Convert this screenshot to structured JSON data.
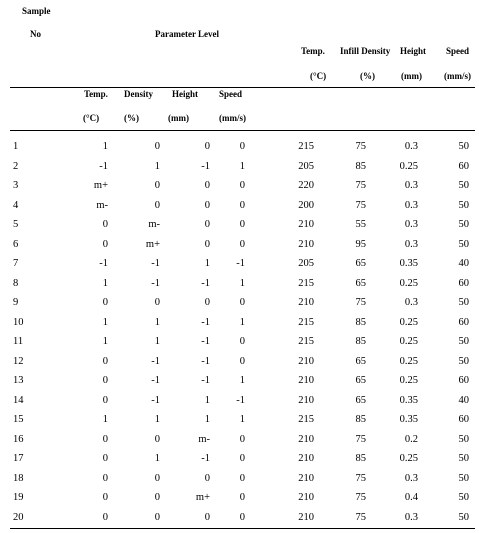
{
  "header": {
    "sample": "Sample",
    "no": "No",
    "parameter_level": "Parameter Level",
    "temp": "Temp.",
    "infill_density": "Infill Density",
    "height": "Height",
    "speed": "Speed",
    "unit_temp": "(°C)",
    "unit_pct": "(%)",
    "unit_mm": "(mm)",
    "unit_speed": "(mm/s)"
  },
  "subheader": {
    "temp": "Temp.",
    "density": "Density",
    "height": "Height",
    "speed": "Speed",
    "unit_temp": "(°C)",
    "unit_pct": "(%)",
    "unit_mm": "(mm)",
    "unit_speed": "(mm/s)"
  },
  "rows": [
    [
      "1",
      "1",
      "0",
      "0",
      "0",
      "215",
      "75",
      "0.3",
      "50"
    ],
    [
      "2",
      "-1",
      "1",
      "-1",
      "1",
      "205",
      "85",
      "0.25",
      "60"
    ],
    [
      "3",
      "m+",
      "0",
      "0",
      "0",
      "220",
      "75",
      "0.3",
      "50"
    ],
    [
      "4",
      "m-",
      "0",
      "0",
      "0",
      "200",
      "75",
      "0.3",
      "50"
    ],
    [
      "5",
      "0",
      "m-",
      "0",
      "0",
      "210",
      "55",
      "0.3",
      "50"
    ],
    [
      "6",
      "0",
      "m+",
      "0",
      "0",
      "210",
      "95",
      "0.3",
      "50"
    ],
    [
      "7",
      "-1",
      "-1",
      "1",
      "-1",
      "205",
      "65",
      "0.35",
      "40"
    ],
    [
      "8",
      "1",
      "-1",
      "-1",
      "1",
      "215",
      "65",
      "0.25",
      "60"
    ],
    [
      "9",
      "0",
      "0",
      "0",
      "0",
      "210",
      "75",
      "0.3",
      "50"
    ],
    [
      "10",
      "1",
      "1",
      "-1",
      "1",
      "215",
      "85",
      "0.25",
      "60"
    ],
    [
      "11",
      "1",
      "1",
      "-1",
      "0",
      "215",
      "85",
      "0.25",
      "50"
    ],
    [
      "12",
      "0",
      "-1",
      "-1",
      "0",
      "210",
      "65",
      "0.25",
      "50"
    ],
    [
      "13",
      "0",
      "-1",
      "-1",
      "1",
      "210",
      "65",
      "0.25",
      "60"
    ],
    [
      "14",
      "0",
      "-1",
      "1",
      "-1",
      "210",
      "65",
      "0.35",
      "40"
    ],
    [
      "15",
      "1",
      "1",
      "1",
      "1",
      "215",
      "85",
      "0.35",
      "60"
    ],
    [
      "16",
      "0",
      "0",
      "m-",
      "0",
      "210",
      "75",
      "0.2",
      "50"
    ],
    [
      "17",
      "0",
      "1",
      "-1",
      "0",
      "210",
      "85",
      "0.25",
      "50"
    ],
    [
      "18",
      "0",
      "0",
      "0",
      "0",
      "210",
      "75",
      "0.3",
      "50"
    ],
    [
      "19",
      "0",
      "0",
      "m+",
      "0",
      "210",
      "75",
      "0.4",
      "50"
    ],
    [
      "20",
      "0",
      "0",
      "0",
      "0",
      "210",
      "75",
      "0.3",
      "50"
    ]
  ]
}
